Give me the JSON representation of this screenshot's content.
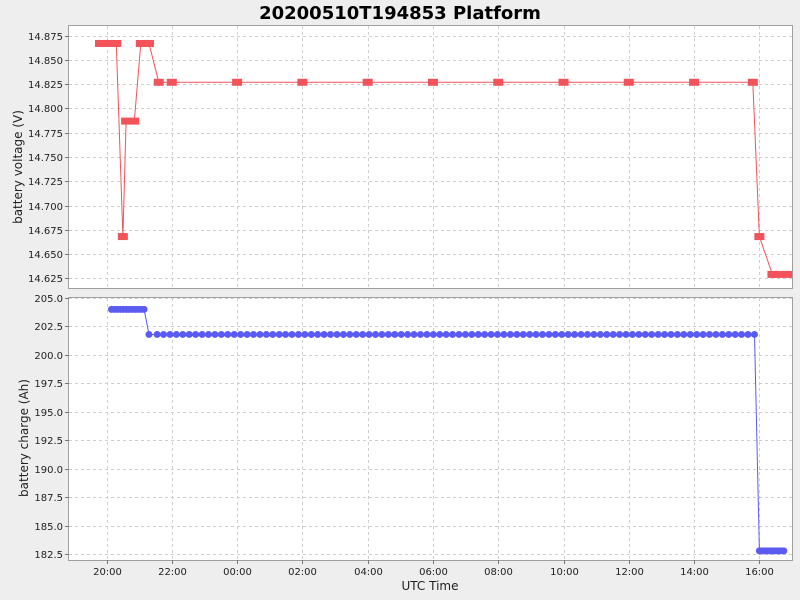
{
  "chart_data": {
    "title": "20200510T194853 Platform",
    "xlabel": "UTC Time",
    "x_ticks": [
      "20:00",
      "22:00",
      "00:00",
      "02:00",
      "04:00",
      "06:00",
      "08:00",
      "10:00",
      "12:00",
      "14:00",
      "16:00"
    ],
    "x_tick_hours": [
      20,
      22,
      24,
      26,
      28,
      30,
      32,
      34,
      36,
      38,
      40
    ],
    "x_range_hours": [
      18.85,
      41.0
    ],
    "panels": [
      {
        "type": "line",
        "ylabel": "battery voltage (V)",
        "ylim": [
          14.615,
          14.885
        ],
        "y_ticks": [
          "14.625",
          "14.650",
          "14.675",
          "14.700",
          "14.725",
          "14.750",
          "14.775",
          "14.800",
          "14.825",
          "14.850",
          "14.875"
        ],
        "color": "#f2535b",
        "marker": "square",
        "x_hours": [
          19.8,
          20.05,
          20.3,
          20.5,
          20.6,
          20.85,
          21.05,
          21.3,
          21.6,
          22.0,
          24.0,
          26.0,
          28.0,
          30.0,
          32.0,
          34.0,
          36.0,
          38.0,
          39.8,
          40.0,
          40.4,
          40.6,
          40.85
        ],
        "values": [
          14.867,
          14.867,
          14.867,
          14.668,
          14.787,
          14.787,
          14.867,
          14.867,
          14.827,
          14.827,
          14.827,
          14.827,
          14.827,
          14.827,
          14.827,
          14.827,
          14.827,
          14.827,
          14.827,
          14.668,
          14.629,
          14.629,
          14.629
        ]
      },
      {
        "type": "line",
        "ylabel": "battery charge (Ah)",
        "ylim": [
          182.0,
          205.0
        ],
        "y_ticks": [
          "182.5",
          "185.0",
          "187.5",
          "190.0",
          "192.5",
          "195.0",
          "197.5",
          "200.0",
          "202.5",
          "205.0"
        ],
        "color": "#5b5bf2",
        "marker": "circle",
        "segments": [
          {
            "x_start_hours": 20.15,
            "x_end_hours": 21.15,
            "value": 204.0,
            "count": 12
          },
          {
            "x_start_hours": 21.3,
            "x_end_hours": 21.3,
            "value": 201.8,
            "count": 1
          },
          {
            "x_start_hours": 21.55,
            "x_end_hours": 39.85,
            "value": 201.8,
            "count": 94
          },
          {
            "x_start_hours": 40.0,
            "x_end_hours": 40.75,
            "value": 182.8,
            "count": 10
          }
        ]
      }
    ]
  }
}
